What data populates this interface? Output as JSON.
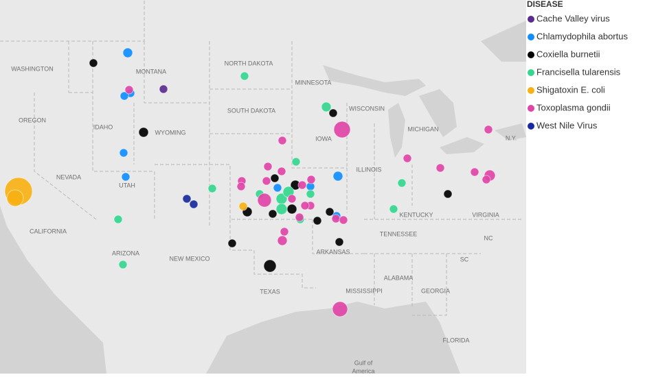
{
  "legend": {
    "title": "DISEASE",
    "items": [
      {
        "label": "Cache Valley virus",
        "color": "#5b2c8f"
      },
      {
        "label": "Chlamydophila abortus",
        "color": "#118dff"
      },
      {
        "label": "Coxiella burnetii",
        "color": "#000000"
      },
      {
        "label": "Francisella tularensis",
        "color": "#35d68f"
      },
      {
        "label": "Shigatoxin E. coli",
        "color": "#f7b114"
      },
      {
        "label": "Toxoplasma gondii",
        "color": "#e044a7"
      },
      {
        "label": "West Nile Virus",
        "color": "#1a2a9c"
      }
    ]
  },
  "map_labels": [
    "WASHINGTON",
    "MONTANA",
    "NORTH DAKOTA",
    "MINNESOTA",
    "OREGON",
    "IDAHO",
    "WYOMING",
    "SOUTH DAKOTA",
    "WISCONSIN",
    "MICHIGAN",
    "N.Y.",
    "IOWA",
    "NEVADA",
    "UTAH",
    "ILLINOIS",
    "CALIFORNIA",
    "KENTUCKY",
    "VIRGINIA",
    "TENNESSEE",
    "NC",
    "ARIZONA",
    "NEW MEXICO",
    "ARKANSAS",
    "SC",
    "ALABAMA",
    "GEORGIA",
    "TEXAS",
    "MISSISSIPPI",
    "FLORIDA",
    "Gulf of",
    "America"
  ]
}
